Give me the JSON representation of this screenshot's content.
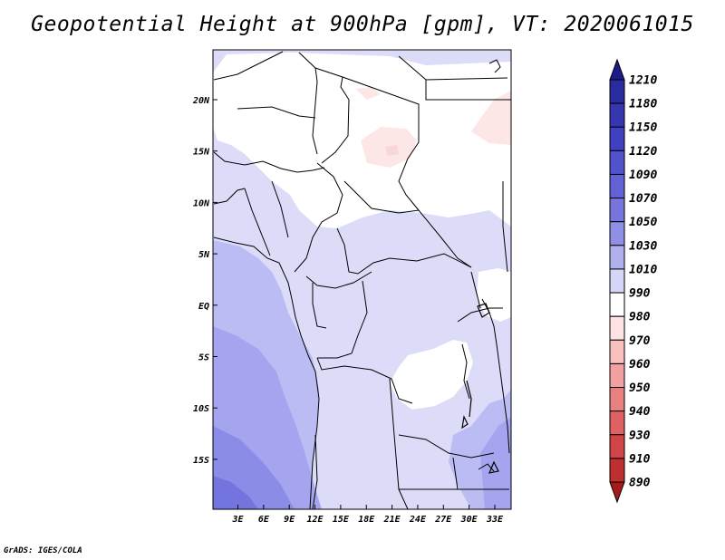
{
  "title": "Geopotential Height at 900hPa [gpm], VT: 2020061015",
  "footer": "GrADS: IGES/COLA",
  "map": {
    "lat_ticks": [
      "20N",
      "15N",
      "10N",
      "5N",
      "EQ",
      "5S",
      "10S",
      "15S"
    ],
    "lon_ticks": [
      "3E",
      "6E",
      "9E",
      "12E",
      "15E",
      "18E",
      "21E",
      "24E",
      "27E",
      "30E",
      "33E"
    ]
  },
  "colorbar": {
    "levels": [
      "1210",
      "1180",
      "1150",
      "1120",
      "1090",
      "1070",
      "1050",
      "1030",
      "1010",
      "990",
      "980",
      "970",
      "960",
      "950",
      "940",
      "930",
      "910",
      "890"
    ],
    "colors": [
      "#1e1a8c",
      "#2a2b9e",
      "#3536b0",
      "#4141c0",
      "#5252cc",
      "#6262d6",
      "#7676de",
      "#8f8fe6",
      "#b0b0ee",
      "#d6d6f8",
      "#ffffff",
      "#fde3e3",
      "#fac0c0",
      "#f3a0a0",
      "#e98080",
      "#de6262",
      "#d04646",
      "#bf2f2f",
      "#a81a1a"
    ]
  }
}
